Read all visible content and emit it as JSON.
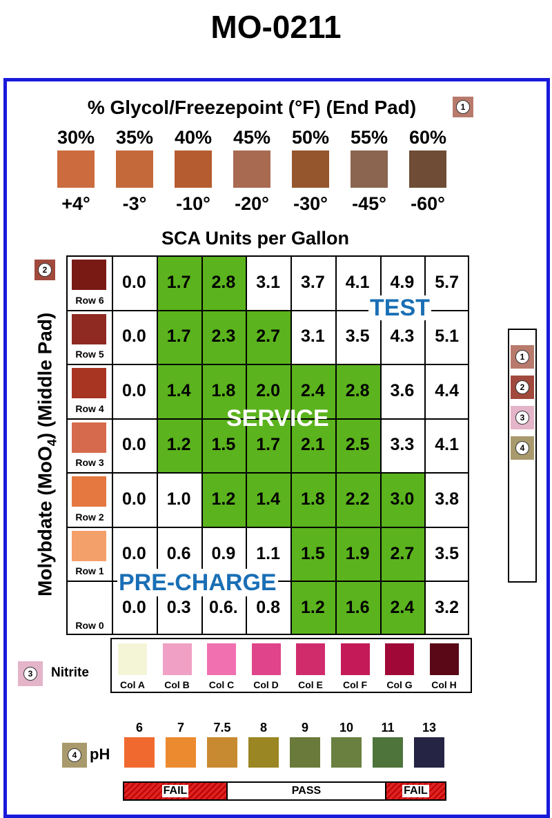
{
  "title": "MO-0211",
  "glycol": {
    "title": "% Glycol/Freezepoint (°F) (End Pad)",
    "badge": "1",
    "badge_color": "#b87a6c",
    "items": [
      {
        "pct": "30%",
        "fp": "+4°",
        "color": "#cc6b3d"
      },
      {
        "pct": "35%",
        "fp": "-3°",
        "color": "#c46a3a"
      },
      {
        "pct": "40%",
        "fp": "-10°",
        "color": "#b55c30"
      },
      {
        "pct": "45%",
        "fp": "-20°",
        "color": "#a86a50"
      },
      {
        "pct": "50%",
        "fp": "-30°",
        "color": "#95562e"
      },
      {
        "pct": "55%",
        "fp": "-45°",
        "color": "#8b6550"
      },
      {
        "pct": "60%",
        "fp": "-60°",
        "color": "#6e4c35"
      }
    ]
  },
  "sca": {
    "title": "SCA Units per Gallon",
    "y_label": "Molybdate (MoO4) (Middle Pad)",
    "y_label_main": "Molybdate (MoO",
    "y_label_sub": "4",
    "y_label_tail": ") (Middle Pad)",
    "badge": "2",
    "badge_color": "#a0493c",
    "rows": [
      {
        "label": "Row 6",
        "color": "#7a1a14",
        "values": [
          "0.0",
          "1.7",
          "2.8",
          "3.1",
          "3.7",
          "4.1",
          "4.9",
          "5.7"
        ]
      },
      {
        "label": "Row 5",
        "color": "#8e2a22",
        "values": [
          "0.0",
          "1.7",
          "2.3",
          "2.7",
          "3.1",
          "3.5",
          "4.3",
          "5.1"
        ]
      },
      {
        "label": "Row 4",
        "color": "#a83422",
        "values": [
          "0.0",
          "1.4",
          "1.8",
          "2.0",
          "2.4",
          "2.8",
          "3.6",
          "4.4"
        ]
      },
      {
        "label": "Row 3",
        "color": "#d66a4c",
        "values": [
          "0.0",
          "1.2",
          "1.5",
          "1.7",
          "2.1",
          "2.5",
          "3.3",
          "4.1"
        ]
      },
      {
        "label": "Row 2",
        "color": "#e47840",
        "values": [
          "0.0",
          "1.0",
          "1.2",
          "1.4",
          "1.8",
          "2.2",
          "3.0",
          "3.8"
        ]
      },
      {
        "label": "Row 1",
        "color": "#f4a06a",
        "values": [
          "0.0",
          "0.6",
          "0.9",
          "1.1",
          "1.5",
          "1.9",
          "2.7",
          "3.5"
        ]
      },
      {
        "label": "Row 0",
        "color": "",
        "values": [
          "0.0",
          "0.3",
          "0.6.",
          "0.8",
          "1.2",
          "1.6",
          "2.4",
          "3.2"
        ]
      }
    ],
    "zones": {
      "test": "TEST",
      "service": "SERVICE",
      "precharge": "PRE-CHARGE"
    },
    "zone_colors": {
      "service": "#5bb31d",
      "labels": "#1a6fb5"
    }
  },
  "nitrite": {
    "label": "Nitrite",
    "badge": "3",
    "badge_color": "#e4b4c8",
    "cols": [
      {
        "label": "Col A",
        "color": "#f4f4d6"
      },
      {
        "label": "Col B",
        "color": "#f0a0c4"
      },
      {
        "label": "Col C",
        "color": "#f070b0"
      },
      {
        "label": "Col D",
        "color": "#e0448a"
      },
      {
        "label": "Col E",
        "color": "#d02c6c"
      },
      {
        "label": "Col F",
        "color": "#c41a58"
      },
      {
        "label": "Col G",
        "color": "#a00838"
      },
      {
        "label": "Col H",
        "color": "#5a0818"
      }
    ]
  },
  "ph": {
    "label": "pH",
    "badge": "4",
    "badge_color": "#a89a6c",
    "items": [
      {
        "value": "6",
        "color": "#f06a30"
      },
      {
        "value": "7",
        "color": "#ec8a30"
      },
      {
        "value": "7.5",
        "color": "#c88a30"
      },
      {
        "value": "8",
        "color": "#9a8622"
      },
      {
        "value": "9",
        "color": "#6a7a3a"
      },
      {
        "value": "10",
        "color": "#6a8040"
      },
      {
        "value": "11",
        "color": "#4e743c"
      },
      {
        "value": "13",
        "color": "#262444"
      }
    ],
    "bar": {
      "fail_left": "FAIL",
      "pass": "PASS",
      "fail_right": "FAIL"
    }
  },
  "legend": {
    "items": [
      {
        "num": "1",
        "color": "#b87a6c"
      },
      {
        "num": "2",
        "color": "#a0493c"
      },
      {
        "num": "3",
        "color": "#e4b4c8"
      },
      {
        "num": "4",
        "color": "#a89a6c"
      }
    ]
  }
}
